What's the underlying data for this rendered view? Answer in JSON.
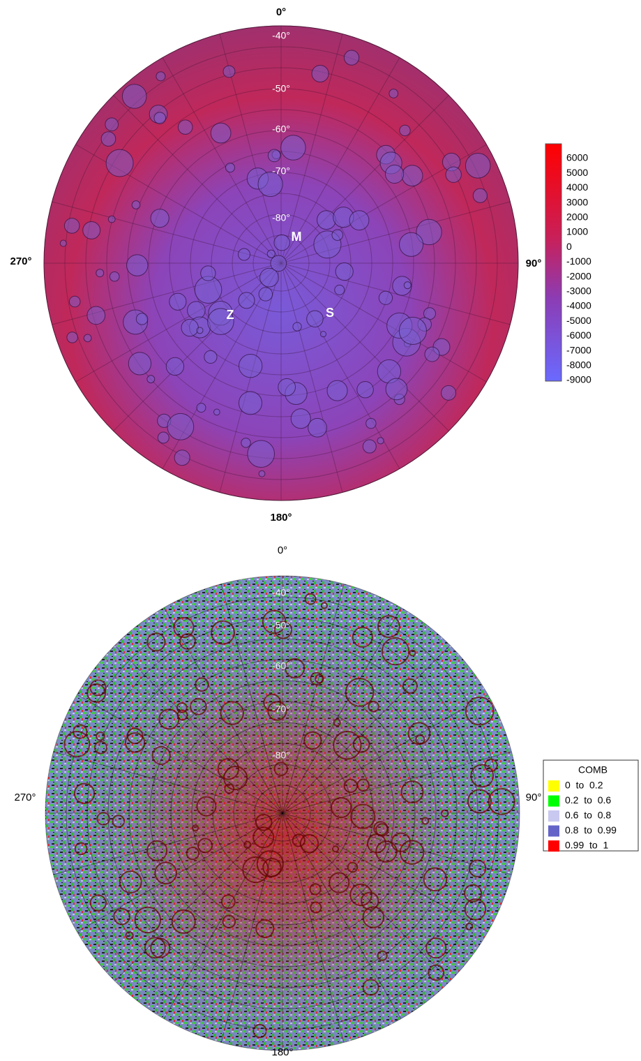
{
  "maps": [
    {
      "longitude_labels": {
        "top": "0°",
        "right": "90°",
        "bottom": "180°",
        "left": "270°"
      },
      "latitude_labels": [
        "-40°",
        "-50°",
        "-60°",
        "-70°",
        "-80°"
      ],
      "features": [
        "M",
        "Z",
        "S"
      ],
      "colorbar": {
        "ticks": [
          6000,
          5000,
          4000,
          3000,
          2000,
          1000,
          0,
          -1000,
          -2000,
          -3000,
          -4000,
          -5000,
          -6000,
          -7000,
          -8000,
          -9000
        ]
      }
    },
    {
      "longitude_labels": {
        "top": "0°",
        "right": "90°",
        "bottom": "180°",
        "left": "270°"
      },
      "latitude_labels": [
        "-40°",
        "-50°",
        "-60°",
        "-70°",
        "-80°"
      ],
      "legend": {
        "title": "COMB",
        "entries": [
          {
            "label": "0  to  0.2",
            "color": "#ffff00"
          },
          {
            "label": "0.2  to  0.6",
            "color": "#00ff00"
          },
          {
            "label": "0.6  to  0.8",
            "color": "#c8c8f0"
          },
          {
            "label": "0.8  to  0.99",
            "color": "#6464c8"
          },
          {
            "label": "0.99  to  1",
            "color": "#ff0000"
          }
        ]
      }
    }
  ]
}
